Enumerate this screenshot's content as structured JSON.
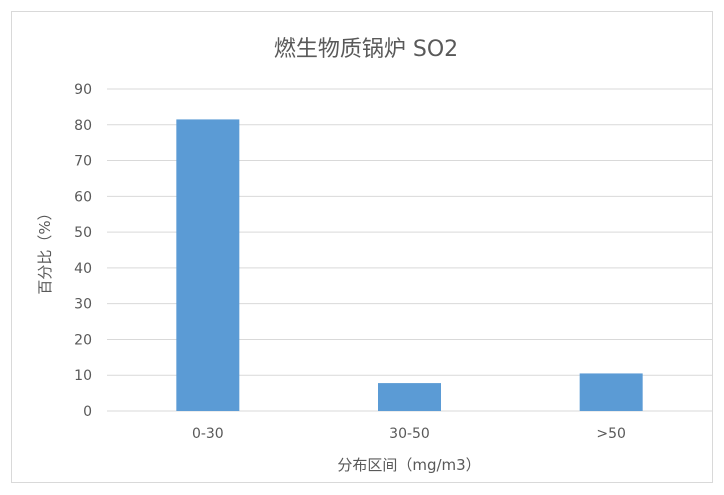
{
  "chart_data": {
    "type": "bar",
    "title": "燃生物质锅炉 SO2",
    "xlabel": "分布区间（mg/m3）",
    "ylabel": "百分比（%）",
    "categories": [
      "0-30",
      "30-50",
      ">50"
    ],
    "values": [
      81.5,
      7.8,
      10.5
    ],
    "ylim": [
      0,
      90
    ],
    "yticks": [
      "0",
      "10",
      "20",
      "30",
      "40",
      "50",
      "60",
      "70",
      "80",
      "90"
    ],
    "grid": true,
    "legend": "none",
    "colors": {
      "bar": "#5b9bd5",
      "grid": "#d9d9d9",
      "text": "#595959"
    }
  }
}
